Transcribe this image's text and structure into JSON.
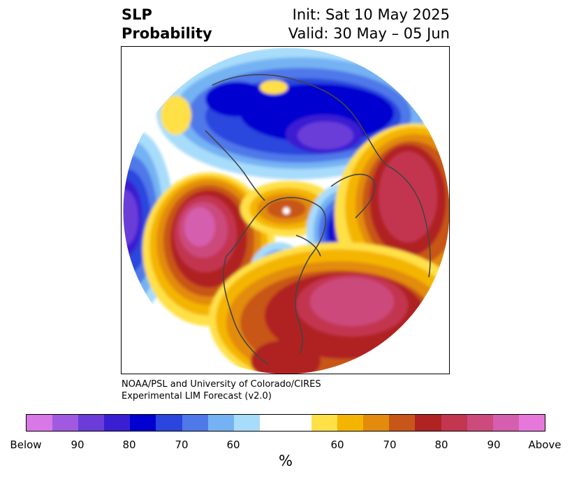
{
  "title": {
    "left_line1": "SLP",
    "left_line2": "Probability",
    "right_line1": "Init: Sat 10 May 2025",
    "right_line2": "Valid: 30 May – 05 Jun"
  },
  "credit": {
    "line1": "NOAA/PSL and University of Colorado/CIRES",
    "line2": "Experimental LIM Forecast (v2.0)"
  },
  "colorbar": {
    "unit": "%",
    "colors": [
      "#d877e6",
      "#a05ae0",
      "#6b3cd8",
      "#3a1fd2",
      "#0000d0",
      "#2a46de",
      "#4f78e9",
      "#74b2f3",
      "#a8dcfb",
      "#ffffff",
      "#ffffff",
      "#ffe046",
      "#f4b500",
      "#e28b0d",
      "#c85618",
      "#b02323",
      "#c33650",
      "#cc4a7c",
      "#d55fae",
      "#e678dc"
    ],
    "tick_labels": [
      "Below",
      "90",
      "80",
      "70",
      "60",
      "60",
      "70",
      "80",
      "90",
      "Above"
    ]
  },
  "map": {
    "projection": "north-polar-stereographic",
    "regions": [
      {
        "name": "Below-normal SLP over Arctic / northern Eurasia",
        "category": "below",
        "peak": "Below"
      },
      {
        "name": "Below-normal SLP over central Pacific",
        "category": "below",
        "peak": "Below"
      },
      {
        "name": "Below-normal SLP near Greenland",
        "category": "below",
        "peak": "Below"
      },
      {
        "name": "Below-normal SLP over central Canada",
        "category": "below",
        "peak": "80"
      },
      {
        "name": "Above-normal SLP over North Pacific",
        "category": "above",
        "peak": "90"
      },
      {
        "name": "Above-normal SLP over eastern North America / western Atlantic",
        "category": "above",
        "peak": "90"
      },
      {
        "name": "Above-normal SLP over western Europe",
        "category": "above",
        "peak": "80"
      }
    ]
  }
}
